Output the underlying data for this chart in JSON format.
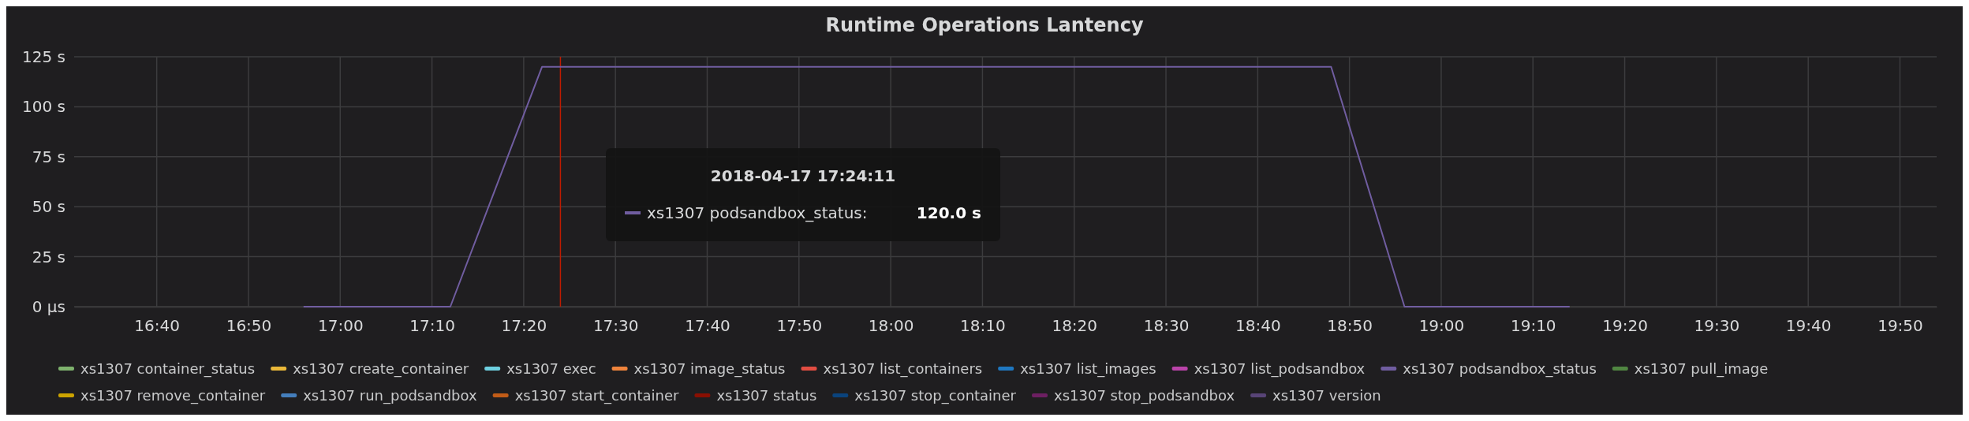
{
  "chart_data": {
    "type": "line",
    "title": "Runtime Operations Lantency",
    "x": [
      "2018-04-17T16:56",
      "2018-04-17T17:12",
      "2018-04-17T17:22",
      "2018-04-17T18:48",
      "2018-04-17T18:56",
      "2018-04-17T19:14"
    ],
    "xlim": [
      "2018-04-17T16:31",
      "2018-04-17T19:54"
    ],
    "xticks": [
      {
        "value": "2018-04-17T16:40",
        "label": "16:40"
      },
      {
        "value": "2018-04-17T16:50",
        "label": "16:50"
      },
      {
        "value": "2018-04-17T17:00",
        "label": "17:00"
      },
      {
        "value": "2018-04-17T17:10",
        "label": "17:10"
      },
      {
        "value": "2018-04-17T17:20",
        "label": "17:20"
      },
      {
        "value": "2018-04-17T17:30",
        "label": "17:30"
      },
      {
        "value": "2018-04-17T17:40",
        "label": "17:40"
      },
      {
        "value": "2018-04-17T17:50",
        "label": "17:50"
      },
      {
        "value": "2018-04-17T18:00",
        "label": "18:00"
      },
      {
        "value": "2018-04-17T18:10",
        "label": "18:10"
      },
      {
        "value": "2018-04-17T18:20",
        "label": "18:20"
      },
      {
        "value": "2018-04-17T18:30",
        "label": "18:30"
      },
      {
        "value": "2018-04-17T18:40",
        "label": "18:40"
      },
      {
        "value": "2018-04-17T18:50",
        "label": "18:50"
      },
      {
        "value": "2018-04-17T19:00",
        "label": "19:00"
      },
      {
        "value": "2018-04-17T19:10",
        "label": "19:10"
      },
      {
        "value": "2018-04-17T19:20",
        "label": "19:20"
      },
      {
        "value": "2018-04-17T19:30",
        "label": "19:30"
      },
      {
        "value": "2018-04-17T19:40",
        "label": "19:40"
      },
      {
        "value": "2018-04-17T19:50",
        "label": "19:50"
      }
    ],
    "ylim": [
      0,
      125
    ],
    "yticks": [
      {
        "value": 0,
        "label": "0 µs"
      },
      {
        "value": 25,
        "label": "25 s"
      },
      {
        "value": 50,
        "label": "50 s"
      },
      {
        "value": 75,
        "label": "75 s"
      },
      {
        "value": 100,
        "label": "100 s"
      },
      {
        "value": 125,
        "label": "125 s"
      }
    ],
    "grid": true,
    "legend": "bottom",
    "marker": "none",
    "line_style": "solid",
    "ref_lines": [
      {
        "axis": "x",
        "value": "2018-04-17T17:24",
        "color": "#bf1b00"
      }
    ],
    "annotations": [
      "2018-04-17 17:24:11",
      "xs1307 podsandbox_status:",
      "120.0 s"
    ],
    "series": [
      {
        "name": "xs1307 container_status",
        "color": "#7eb26d",
        "values": [
          null,
          null,
          null,
          null,
          null,
          null
        ]
      },
      {
        "name": "xs1307 create_container",
        "color": "#eab839",
        "values": [
          null,
          null,
          null,
          null,
          null,
          null
        ]
      },
      {
        "name": "xs1307 exec",
        "color": "#6ed0e0",
        "values": [
          null,
          null,
          null,
          null,
          null,
          null
        ]
      },
      {
        "name": "xs1307 image_status",
        "color": "#ef843c",
        "values": [
          null,
          null,
          null,
          null,
          null,
          null
        ]
      },
      {
        "name": "xs1307 list_containers",
        "color": "#e24d42",
        "values": [
          null,
          null,
          null,
          null,
          null,
          null
        ]
      },
      {
        "name": "xs1307 list_images",
        "color": "#1f78c1",
        "values": [
          null,
          null,
          null,
          null,
          null,
          null
        ]
      },
      {
        "name": "xs1307 list_podsandbox",
        "color": "#ba43a9",
        "values": [
          null,
          null,
          null,
          null,
          null,
          null
        ]
      },
      {
        "name": "xs1307 podsandbox_status",
        "color": "#705da0",
        "values": [
          0,
          0,
          120,
          120,
          0,
          0
        ]
      },
      {
        "name": "xs1307 pull_image",
        "color": "#508642",
        "values": [
          null,
          null,
          null,
          null,
          null,
          null
        ]
      },
      {
        "name": "xs1307 remove_container",
        "color": "#cca300",
        "values": [
          null,
          null,
          null,
          null,
          null,
          null
        ]
      },
      {
        "name": "xs1307 run_podsandbox",
        "color": "#447ebc",
        "values": [
          null,
          null,
          null,
          null,
          null,
          null
        ]
      },
      {
        "name": "xs1307 start_container",
        "color": "#c15c17",
        "values": [
          null,
          null,
          null,
          null,
          null,
          null
        ]
      },
      {
        "name": "xs1307 status",
        "color": "#890f02",
        "values": [
          null,
          null,
          null,
          null,
          null,
          null
        ]
      },
      {
        "name": "xs1307 stop_container",
        "color": "#0a437c",
        "values": [
          null,
          null,
          null,
          null,
          null,
          null
        ]
      },
      {
        "name": "xs1307 stop_podsandbox",
        "color": "#6d1f62",
        "values": [
          null,
          null,
          null,
          null,
          null,
          null
        ]
      },
      {
        "name": "xs1307 version",
        "color": "#584477",
        "values": [
          null,
          null,
          null,
          null,
          null,
          null
        ]
      }
    ]
  }
}
